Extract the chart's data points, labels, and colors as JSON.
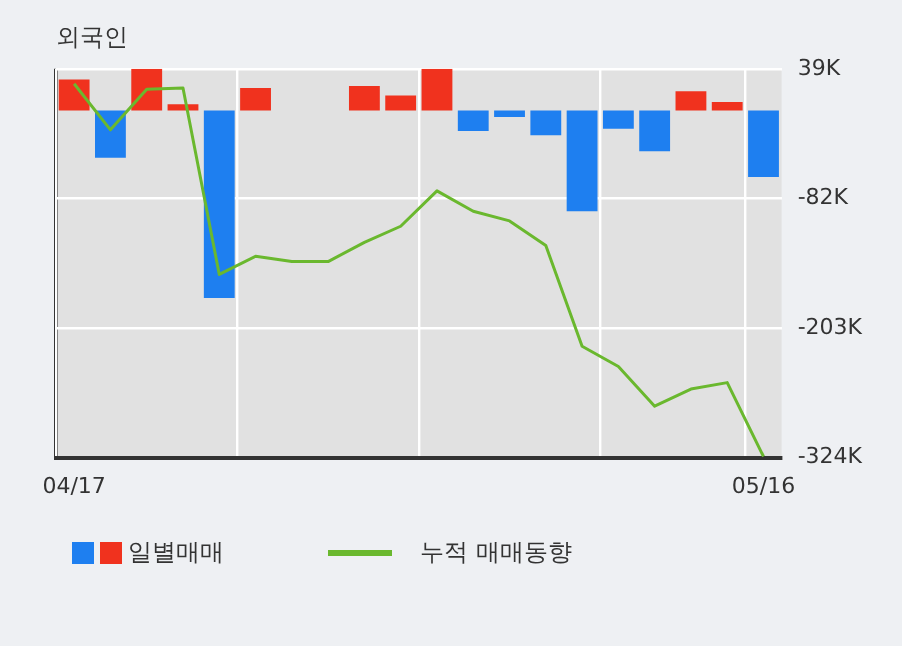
{
  "chart_data": {
    "type": "bar",
    "title": "외국인",
    "categories": [
      "04/17",
      null,
      null,
      null,
      null,
      null,
      null,
      null,
      null,
      null,
      null,
      null,
      null,
      null,
      null,
      null,
      null,
      null,
      null,
      "05/16"
    ],
    "series": [
      {
        "name": "일별매매",
        "colors": [
          "#f0321e",
          "#1e7ff0",
          "#f0321e",
          "#f0321e",
          "#1e7ff0",
          "#f0321e",
          "#f0321e",
          "#f0321e",
          "#f0321e",
          "#f0321e",
          "#f0321e",
          "#1e7ff0",
          "#1e7ff0",
          "#1e7ff0",
          "#1e7ff0",
          "#1e7ff0",
          "#1e7ff0",
          "#f0321e",
          "#f0321e",
          "#1e7ff0"
        ],
        "values": [
          29,
          -44,
          39,
          6,
          -175,
          21,
          0,
          0,
          23,
          14,
          39,
          -19,
          -6,
          -23,
          -94,
          -17,
          -38,
          18,
          8,
          -62
        ]
      },
      {
        "name": "누적 매매동향",
        "type": "line",
        "color": "#6ab82e",
        "values": [
          25,
          -18,
          20,
          21,
          -153,
          -136,
          -141,
          -141,
          -123,
          -108,
          -75,
          -94,
          -103,
          -126,
          -220,
          -239,
          -276,
          -260,
          -254,
          -323
        ]
      }
    ],
    "ylim": [
      -324,
      39
    ],
    "yticks": [
      {
        "value": 39,
        "label": "39K"
      },
      {
        "value": -82,
        "label": "-82K"
      },
      {
        "value": -203,
        "label": "-203K"
      },
      {
        "value": -324,
        "label": "-324K"
      }
    ],
    "grid": true,
    "legend": "bottom",
    "marker": "none"
  }
}
